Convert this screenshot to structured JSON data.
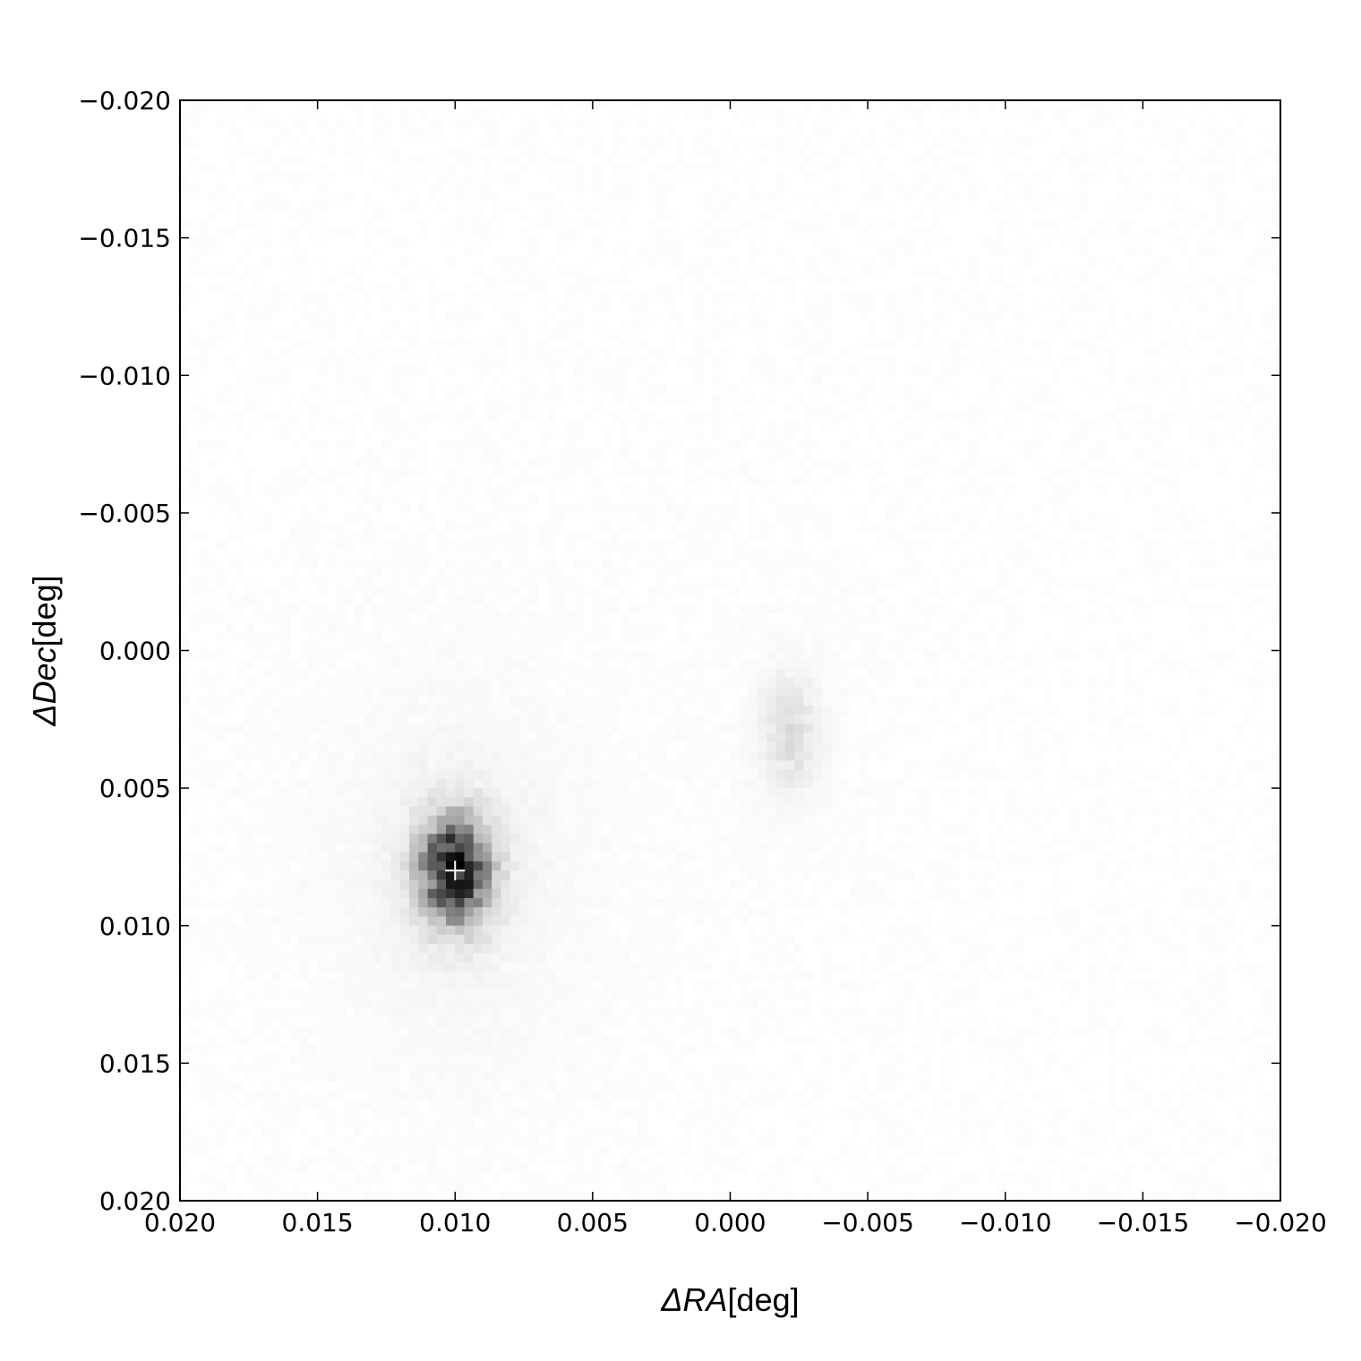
{
  "chart_data": {
    "type": "heatmap",
    "title": "",
    "xlabel": {
      "symbol": "ΔRA",
      "unit": "[deg]"
    },
    "ylabel": {
      "symbol": "ΔDec",
      "unit": "[deg]"
    },
    "xlim": [
      0.02,
      -0.02
    ],
    "ylim": [
      -0.02,
      0.02
    ],
    "x_ticks": [
      0.02,
      0.015,
      0.01,
      0.005,
      0.0,
      -0.005,
      -0.01,
      -0.015,
      -0.02
    ],
    "x_tick_labels": [
      "0.020",
      "0.015",
      "0.010",
      "0.005",
      "0.000",
      "−0.005",
      "−0.010",
      "−0.015",
      "−0.020"
    ],
    "y_ticks": [
      -0.02,
      -0.015,
      -0.01,
      -0.005,
      0.0,
      0.005,
      0.01,
      0.015,
      0.02
    ],
    "y_tick_labels": [
      "−0.020",
      "−0.015",
      "−0.010",
      "−0.005",
      "0.000",
      "0.005",
      "0.010",
      "0.015",
      "0.020"
    ],
    "grid": false,
    "colormap": "gray_r",
    "sources": [
      {
        "ra": 0.01,
        "dec": 0.008,
        "peak": 1.0,
        "sigma_ra": 0.0008,
        "sigma_dec": 0.0012
      },
      {
        "ra": -0.0022,
        "dec": 0.003,
        "peak": 0.12,
        "sigma_ra": 0.0007,
        "sigma_dec": 0.0014
      }
    ],
    "marker": {
      "ra": 0.01,
      "dec": 0.008,
      "symbol": "+",
      "color": "#ffffff"
    }
  }
}
